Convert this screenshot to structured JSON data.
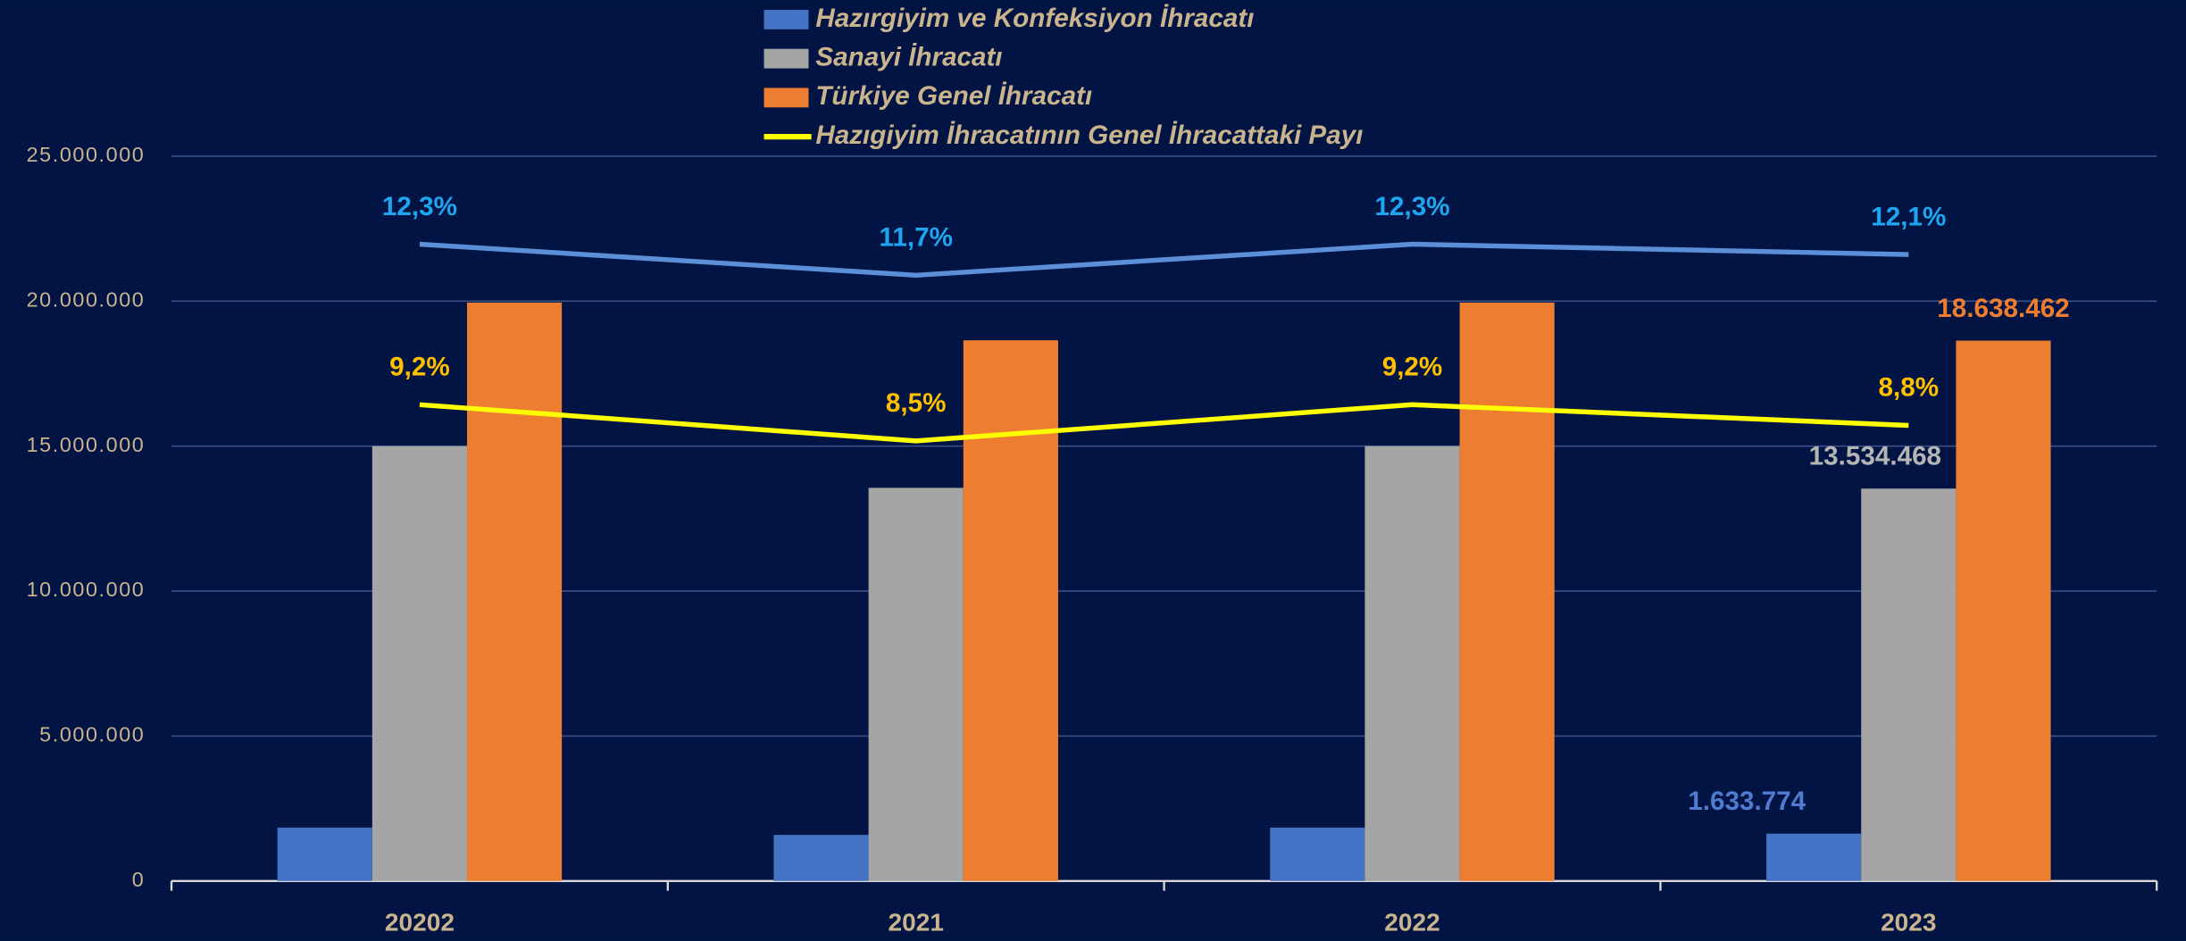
{
  "chart_data": {
    "type": "bar",
    "categories": [
      "20202",
      "2021",
      "2022",
      "2023"
    ],
    "series": [
      {
        "name": "Hazırgiyim ve Konfeksiyon İhracatı",
        "type": "bar",
        "color": "#4472c4",
        "label_color": "#4f7bd0",
        "values": [
          1840000,
          1590000,
          1840000,
          1633774
        ],
        "value_labels": [
          null,
          null,
          null,
          "1.633.774"
        ]
      },
      {
        "name": "Sanayi İhracatı",
        "type": "bar",
        "color": "#a5a5a5",
        "label_color": "#b5b5b5",
        "values": [
          15000000,
          13560000,
          15000000,
          13534468
        ],
        "value_labels": [
          null,
          null,
          null,
          "13.534.468"
        ]
      },
      {
        "name": "Türkiye Genel İhracatı",
        "type": "bar",
        "color": "#ed7d31",
        "label_color": "#ed7d31",
        "values": [
          19950000,
          18650000,
          19950000,
          18638462
        ],
        "value_labels": [
          null,
          null,
          null,
          "18.638.462"
        ]
      },
      {
        "name": "Hazıgiyim İhracatının Genel İhracattaki Payı",
        "type": "line",
        "axis": "y2",
        "color": "#ffff00",
        "label_color": "#ffc000",
        "values": [
          9.2,
          8.5,
          9.2,
          8.8
        ],
        "value_labels": [
          "9,2%",
          "8,5%",
          "9,2%",
          "8,8%"
        ]
      },
      {
        "type": "line",
        "axis": "y2",
        "color": "#5b8fd8",
        "label_color": "#1ea7f0",
        "values": [
          12.3,
          11.7,
          12.3,
          12.1
        ],
        "value_labels": [
          "12,3%",
          "11,7%",
          "12,3%",
          "12,1%"
        ]
      }
    ],
    "ylim": [
      0,
      25000000
    ],
    "yticks": [
      0,
      {
        "value": 5000000,
        "label": "5.000.000"
      },
      {
        "value": 10000000,
        "label": "10.000.000"
      },
      {
        "value": 15000000,
        "label": "15.000.000"
      },
      {
        "value": 20000000,
        "label": "20.000.000"
      },
      {
        "value": 25000000,
        "label": "25.000.000"
      }
    ],
    "y2lim": [
      0,
      14
    ],
    "grid": true
  }
}
